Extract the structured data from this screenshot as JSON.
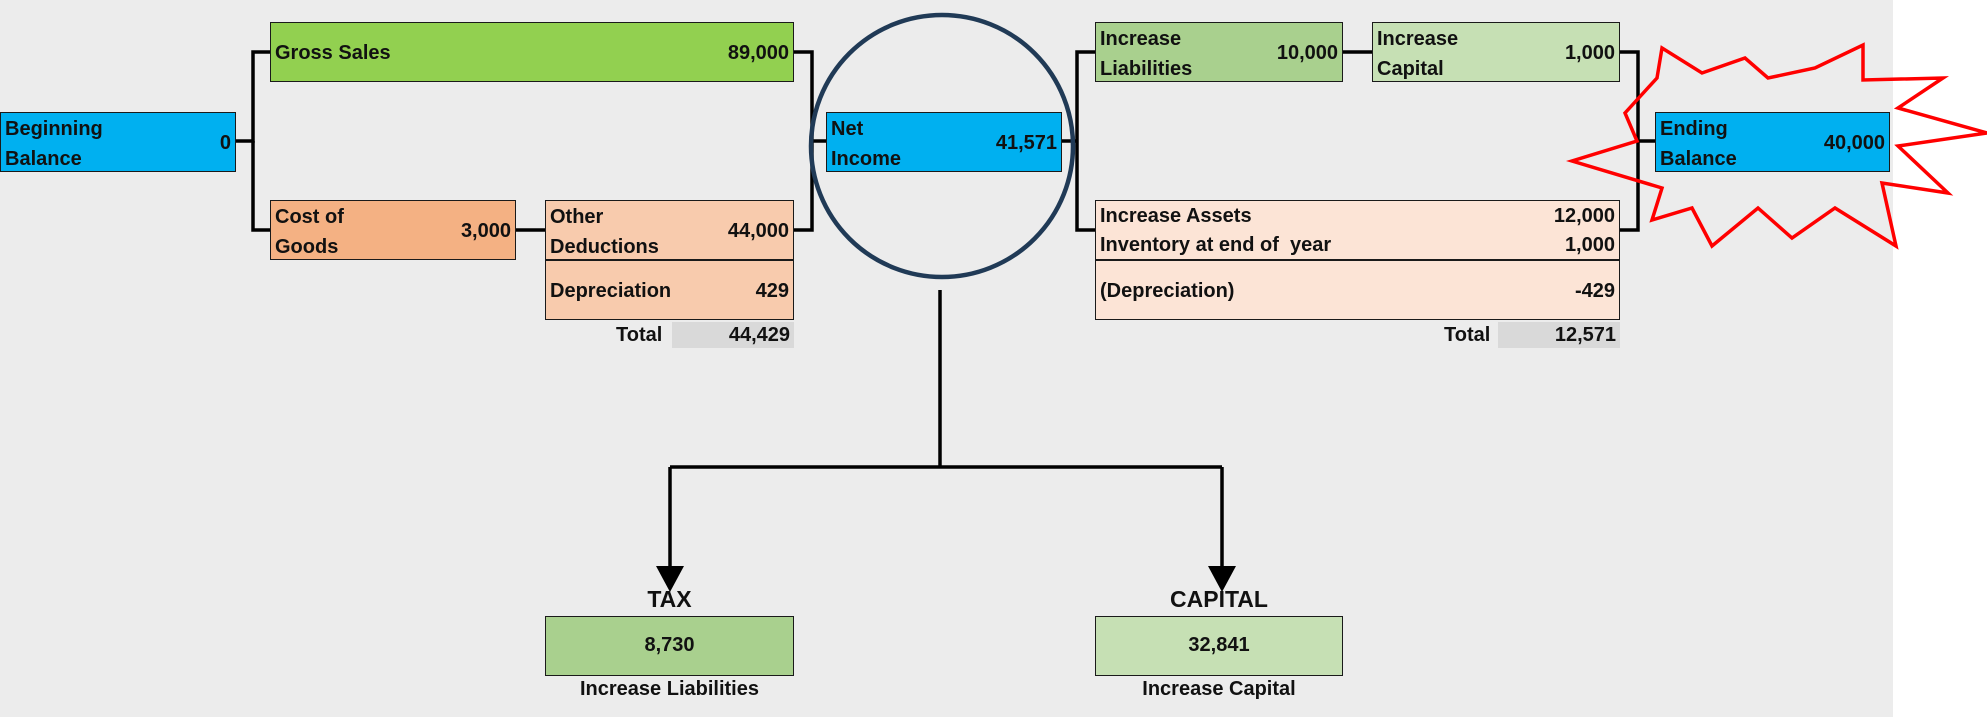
{
  "beginning_balance": {
    "label_line1": "Beginning",
    "label_line2": "Balance",
    "value": "0"
  },
  "gross_sales": {
    "label": "Gross Sales",
    "value": "89,000"
  },
  "cost_of_goods": {
    "label_line1": "Cost of",
    "label_line2": "Goods",
    "value": "3,000"
  },
  "other_deductions": {
    "label_line1": "Other",
    "label_line2": "Deductions",
    "value": "44,000"
  },
  "depreciation": {
    "label": "Depreciation",
    "value": "429"
  },
  "deductions_total": {
    "label": "Total",
    "value": "44,429"
  },
  "net_income": {
    "label_line1": "Net",
    "label_line2": "Income",
    "value": "41,571"
  },
  "increase_liabilities": {
    "label_line1": "Increase",
    "label_line2": "Liabilities",
    "value": "10,000"
  },
  "increase_capital": {
    "label_line1": "Increase",
    "label_line2": "Capital",
    "value": "1,000"
  },
  "assets": {
    "rows": [
      {
        "label": "Increase Assets",
        "value": "12,000"
      },
      {
        "label": "Inventory at end of  year",
        "value": "1,000"
      },
      {
        "label": "(Depreciation)",
        "value": "-429"
      }
    ],
    "total_label": "Total",
    "total_value": "12,571"
  },
  "ending_balance": {
    "label_line1": "Ending",
    "label_line2": "Balance",
    "value": "40,000"
  },
  "tax": {
    "heading": "TAX",
    "value": "8,730",
    "caption": "Increase Liabilities"
  },
  "capital": {
    "heading": "CAPITAL",
    "value": "32,841",
    "caption": "Increase Capital"
  },
  "colors": {
    "blue": "#00b0f0",
    "green": "#92d050",
    "dark_green": "#a9d08e",
    "light_green": "#c6e0b4",
    "orange": "#f4b183",
    "peach": "#f8cbad",
    "light_peach": "#fce4d6",
    "circle": "#203a56",
    "burst": "#ff0000",
    "background": "#ececec"
  }
}
